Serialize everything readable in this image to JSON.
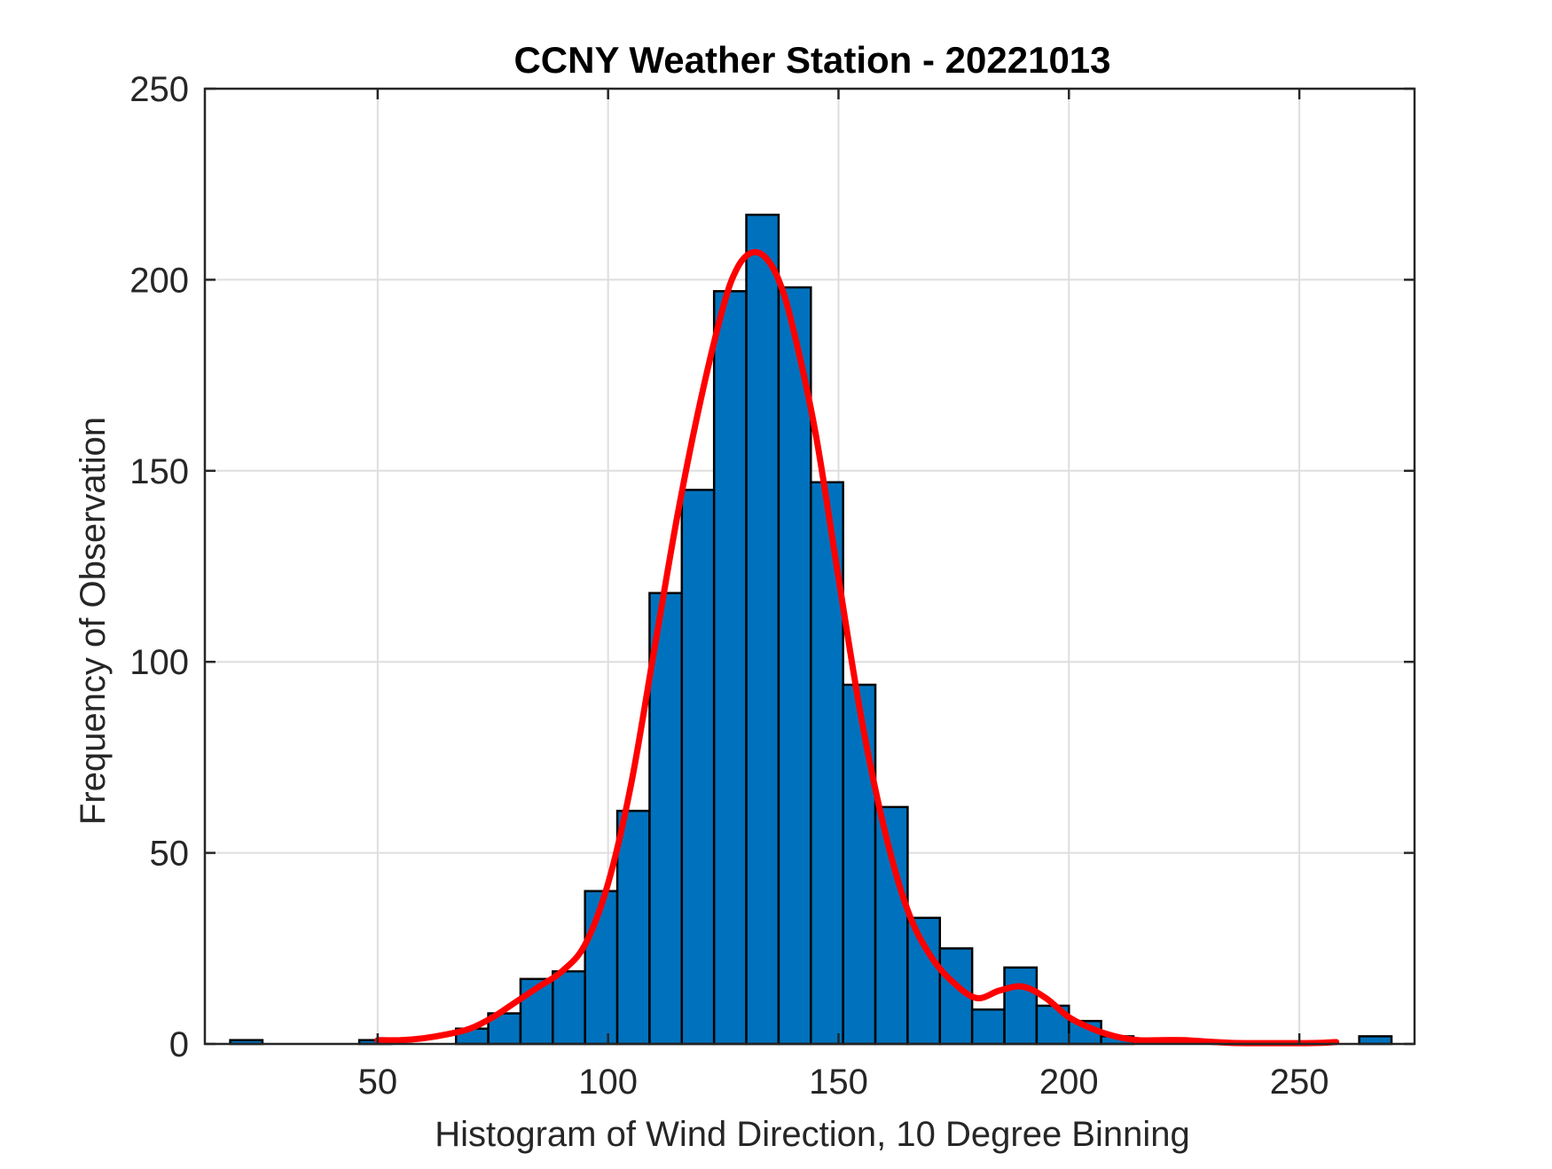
{
  "chart_data": {
    "type": "bar",
    "title": "CCNY Weather Station - 20221013",
    "xlabel": "Histogram of Wind Direction, 10 Degree Binning",
    "ylabel": "Frequency of Observation",
    "xlim": [
      12.5,
      275
    ],
    "ylim": [
      0,
      250
    ],
    "xticks": [
      50,
      100,
      150,
      200,
      250
    ],
    "yticks": [
      0,
      50,
      100,
      150,
      200,
      250
    ],
    "grid": true,
    "bin_width": 7,
    "bins": [
      {
        "x": 21.5,
        "value": 1
      },
      {
        "x": 49.5,
        "value": 1
      },
      {
        "x": 70.5,
        "value": 4
      },
      {
        "x": 77.5,
        "value": 8
      },
      {
        "x": 84.5,
        "value": 17
      },
      {
        "x": 91.5,
        "value": 19
      },
      {
        "x": 98.5,
        "value": 40
      },
      {
        "x": 105.5,
        "value": 61
      },
      {
        "x": 112.5,
        "value": 118
      },
      {
        "x": 119.5,
        "value": 145
      },
      {
        "x": 126.5,
        "value": 197
      },
      {
        "x": 133.5,
        "value": 217
      },
      {
        "x": 140.5,
        "value": 198
      },
      {
        "x": 147.5,
        "value": 147
      },
      {
        "x": 154.5,
        "value": 94
      },
      {
        "x": 161.5,
        "value": 62
      },
      {
        "x": 168.5,
        "value": 33
      },
      {
        "x": 175.5,
        "value": 25
      },
      {
        "x": 182.5,
        "value": 9
      },
      {
        "x": 189.5,
        "value": 20
      },
      {
        "x": 196.5,
        "value": 10
      },
      {
        "x": 203.5,
        "value": 6
      },
      {
        "x": 210.5,
        "value": 2
      },
      {
        "x": 266.5,
        "value": 2
      }
    ],
    "bar_color": "#0072BD",
    "fit_curve": {
      "color": "#FF0000",
      "x": [
        50,
        55,
        60,
        65,
        70,
        75,
        80,
        85,
        90,
        95,
        100,
        105,
        110,
        115,
        120,
        125,
        128,
        131,
        134,
        137,
        140,
        145,
        150,
        155,
        160,
        165,
        170,
        175,
        180,
        185,
        190,
        195,
        200,
        205,
        210,
        215,
        220,
        225,
        230,
        235,
        240,
        245,
        250,
        255,
        258
      ],
      "y": [
        1,
        1,
        1.5,
        2.5,
        4,
        7,
        11,
        15,
        19,
        26,
        42,
        68,
        103,
        138,
        168,
        193,
        203,
        207,
        206,
        200,
        188,
        160,
        122,
        85,
        56,
        35,
        23,
        16,
        12,
        14,
        15,
        12,
        7,
        4,
        2,
        1,
        1,
        1,
        0.6,
        0.3,
        0.2,
        0.2,
        0.2,
        0.3,
        0.5
      ]
    }
  }
}
